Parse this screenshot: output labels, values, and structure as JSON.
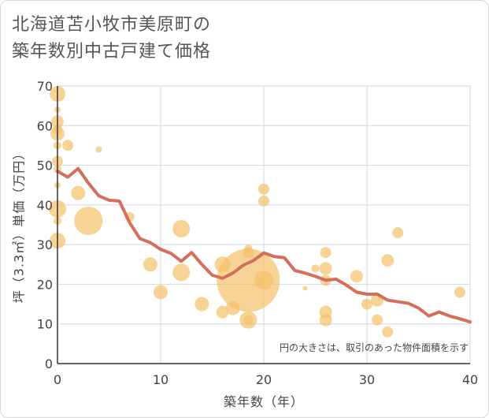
{
  "chart_data": {
    "type": "scatter",
    "title_lines": [
      "北海道苫小牧市美原町の",
      "築年数別中古戸建て価格"
    ],
    "xlabel": "築年数（年）",
    "ylabel": "坪（3.3㎡）単価（万円）",
    "xlim": [
      0,
      40
    ],
    "ylim": [
      0,
      70
    ],
    "x_ticks": [
      0,
      10,
      20,
      30,
      40
    ],
    "y_ticks": [
      0,
      10,
      20,
      30,
      40,
      50,
      60,
      70
    ],
    "grid": true,
    "note": "円の大きさは、取引のあった物件面積を示す",
    "colors": {
      "bubble": "#f4c068",
      "line": "#d4705a",
      "grid": "#cfd8e3",
      "axis": "#333333"
    },
    "bubbles": [
      {
        "x": 0,
        "y": 68,
        "r": 10
      },
      {
        "x": 0,
        "y": 64,
        "r": 4
      },
      {
        "x": 0,
        "y": 61,
        "r": 8
      },
      {
        "x": 0,
        "y": 59,
        "r": 6
      },
      {
        "x": 0,
        "y": 58,
        "r": 9
      },
      {
        "x": 0,
        "y": 55,
        "r": 5
      },
      {
        "x": 0,
        "y": 51,
        "r": 7
      },
      {
        "x": 0,
        "y": 49,
        "r": 5
      },
      {
        "x": 0,
        "y": 45,
        "r": 4
      },
      {
        "x": 0,
        "y": 39,
        "r": 11
      },
      {
        "x": 0,
        "y": 36,
        "r": 5
      },
      {
        "x": 0,
        "y": 31,
        "r": 10
      },
      {
        "x": 1,
        "y": 55,
        "r": 7
      },
      {
        "x": 2,
        "y": 43,
        "r": 9
      },
      {
        "x": 3,
        "y": 36,
        "r": 18
      },
      {
        "x": 4,
        "y": 54,
        "r": 4
      },
      {
        "x": 7,
        "y": 37,
        "r": 6
      },
      {
        "x": 9,
        "y": 25,
        "r": 9
      },
      {
        "x": 10,
        "y": 18,
        "r": 9
      },
      {
        "x": 12,
        "y": 34,
        "r": 11
      },
      {
        "x": 12,
        "y": 23,
        "r": 11
      },
      {
        "x": 14,
        "y": 15,
        "r": 9
      },
      {
        "x": 16,
        "y": 25,
        "r": 10
      },
      {
        "x": 16,
        "y": 13,
        "r": 8
      },
      {
        "x": 17,
        "y": 14,
        "r": 9
      },
      {
        "x": 18.5,
        "y": 28,
        "r": 7
      },
      {
        "x": 18.5,
        "y": 29,
        "r": 5
      },
      {
        "x": 18.5,
        "y": 21,
        "r": 40
      },
      {
        "x": 18.5,
        "y": 11,
        "r": 11
      },
      {
        "x": 18.5,
        "y": 11,
        "r": 6
      },
      {
        "x": 20,
        "y": 44,
        "r": 7
      },
      {
        "x": 20,
        "y": 41,
        "r": 7
      },
      {
        "x": 20,
        "y": 21,
        "r": 12
      },
      {
        "x": 24,
        "y": 19,
        "r": 3
      },
      {
        "x": 25,
        "y": 24,
        "r": 5
      },
      {
        "x": 26,
        "y": 28,
        "r": 7
      },
      {
        "x": 26,
        "y": 24,
        "r": 8
      },
      {
        "x": 26,
        "y": 21,
        "r": 7
      },
      {
        "x": 26,
        "y": 13,
        "r": 8
      },
      {
        "x": 26,
        "y": 11,
        "r": 8
      },
      {
        "x": 29,
        "y": 22,
        "r": 8
      },
      {
        "x": 30,
        "y": 15,
        "r": 7
      },
      {
        "x": 31,
        "y": 16,
        "r": 8
      },
      {
        "x": 31,
        "y": 11,
        "r": 7
      },
      {
        "x": 32,
        "y": 26,
        "r": 8
      },
      {
        "x": 32,
        "y": 8,
        "r": 7
      },
      {
        "x": 33,
        "y": 33,
        "r": 7
      },
      {
        "x": 39,
        "y": 18,
        "r": 7
      }
    ],
    "trend": {
      "x": [
        0,
        1,
        2,
        3,
        4,
        5,
        6,
        7,
        8,
        9,
        10,
        11,
        12,
        13,
        14,
        15,
        16,
        17,
        18,
        19,
        20,
        21,
        22,
        23,
        24,
        25,
        26,
        27,
        28,
        29,
        30,
        31,
        32,
        33,
        34,
        35,
        36,
        37,
        38,
        39,
        40
      ],
      "y": [
        48.5,
        47,
        49.2,
        45.5,
        42.3,
        41.2,
        41,
        35.5,
        31.5,
        30.5,
        28.8,
        27.8,
        25.8,
        28,
        25,
        22.3,
        21.5,
        22.8,
        24.8,
        26,
        27.9,
        27,
        26.7,
        23.5,
        22.8,
        22,
        21,
        21.3,
        19.8,
        18,
        17.5,
        17.5,
        16,
        15.6,
        15.2,
        14,
        12,
        13,
        12,
        11.3,
        10.5
      ]
    }
  }
}
